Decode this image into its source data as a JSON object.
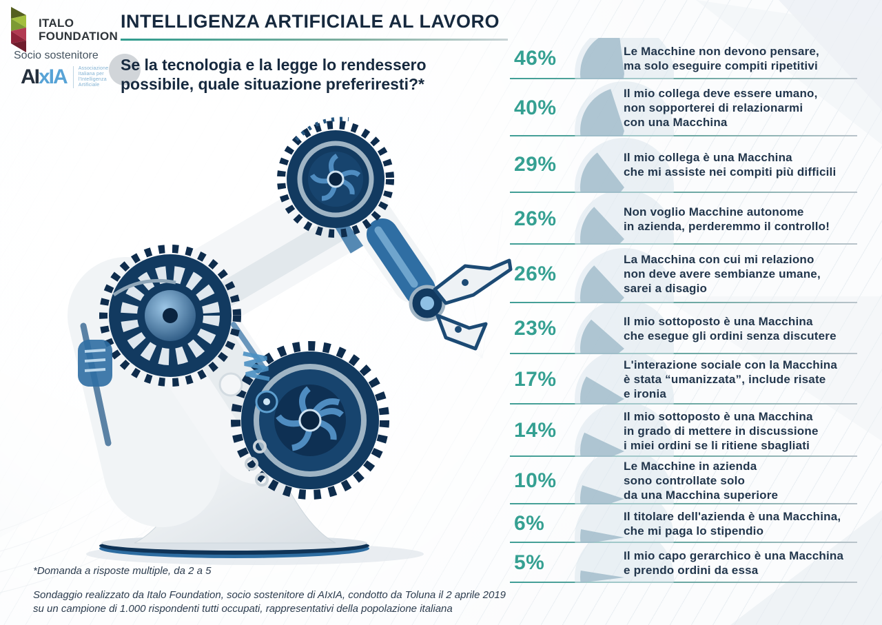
{
  "colors": {
    "accent_teal": "#35a092",
    "navy_text": "#16293e",
    "wedge_blue": "#9fbac9",
    "separator_teal": "#3f9e95",
    "robot_navy": "#123a60",
    "robot_blue": "#2f6ea3"
  },
  "branding": {
    "org_name_line1": "ITALO",
    "org_name_line2": "FOUNDATION",
    "supporter_label": "Socio sostenitore",
    "aixia_wordmark": {
      "part1": "AI",
      "part2": "xIA"
    },
    "aixia_caption_lines": [
      "Associazione",
      "Italiana per",
      "l'Intelligenza",
      "Artificiale"
    ]
  },
  "header": {
    "title": "INTELLIGENZA ARTIFICIALE AL LAVORO",
    "question_lines": [
      "Se la tecnologia e la legge lo rendessero",
      "possibile, quale situazione preferiresti?*"
    ]
  },
  "results": {
    "items": [
      {
        "pct": 46,
        "pct_label": "46%",
        "lines": [
          "Le Macchine non devono pensare,",
          "ma solo eseguire compiti ripetitivi"
        ]
      },
      {
        "pct": 40,
        "pct_label": "40%",
        "lines": [
          "Il mio collega deve essere umano,",
          "non sopporterei di relazionarmi",
          "con una Macchina"
        ]
      },
      {
        "pct": 29,
        "pct_label": "29%",
        "lines": [
          "Il mio collega è una Macchina",
          "che mi assiste nei compiti più difficili"
        ]
      },
      {
        "pct": 26,
        "pct_label": "26%",
        "lines": [
          "Non voglio Macchine autonome",
          "in azienda, perderemmo il controllo!"
        ]
      },
      {
        "pct": 26,
        "pct_label": "26%",
        "lines": [
          "La Macchina con cui mi relaziono",
          "non deve avere sembianze umane,",
          "sarei a disagio"
        ]
      },
      {
        "pct": 23,
        "pct_label": "23%",
        "lines": [
          "Il mio sottoposto è una Macchina",
          "che esegue gli ordini senza discutere"
        ]
      },
      {
        "pct": 17,
        "pct_label": "17%",
        "lines": [
          "L'interazione sociale con la Macchina",
          "è stata “umanizzata”, include risate",
          "e ironia"
        ]
      },
      {
        "pct": 14,
        "pct_label": "14%",
        "lines": [
          "Il mio sottoposto è una Macchina",
          "in grado di mettere in discussione",
          "i miei ordini se li ritiene sbagliati"
        ]
      },
      {
        "pct": 10,
        "pct_label": "10%",
        "lines": [
          "Le Macchine in azienda",
          "sono controllate solo",
          "da una Macchina superiore"
        ]
      },
      {
        "pct": 6,
        "pct_label": "6%",
        "lines": [
          "Il titolare dell'azienda è una Macchina,",
          "che mi paga lo stipendio"
        ]
      },
      {
        "pct": 5,
        "pct_label": "5%",
        "lines": [
          "Il mio capo gerarchico è una Macchina",
          "e prendo ordini da essa"
        ]
      }
    ]
  },
  "chart_data": {
    "type": "bar",
    "title": "Se la tecnologia e la legge lo rendessero possibile, quale situazione preferiresti?*",
    "value_format": "percent",
    "categories": [
      "Le Macchine non devono pensare, ma solo eseguire compiti ripetitivi",
      "Il mio collega deve essere umano, non sopporterei di relazionarmi con una Macchina",
      "Il mio collega è una Macchina che mi assiste nei compiti più difficili",
      "Non voglio Macchine autonome in azienda, perderemmo il controllo!",
      "La Macchina con cui mi relaziono non deve avere sembianze umane, sarei a disagio",
      "Il mio sottoposto è una Macchina che esegue gli ordini senza discutere",
      "L'interazione sociale con la Macchina è stata “umanizzata”, include risate e ironia",
      "Il mio sottoposto è una Macchina in grado di mettere in discussione i miei ordini se li ritiene sbagliati",
      "Le Macchine in azienda sono controllate solo da una Macchina superiore",
      "Il titolare dell'azienda è una Macchina, che mi paga lo stipendio",
      "Il mio capo gerarchico è una Macchina e prendo ordini da essa"
    ],
    "values": [
      46,
      40,
      29,
      26,
      26,
      23,
      17,
      14,
      10,
      6,
      5
    ],
    "note": "*Domanda a risposte multiple, da 2 a 5"
  },
  "footer": {
    "note": "*Domanda a risposte multiple, da 2 a 5",
    "source_lines": [
      "Sondaggio realizzato da Italo Foundation, socio sostenitore di AIxIA, condotto da Toluna il 2 aprile 2019",
      "su un campione di 1.000 rispondenti tutti occupati, rappresentativi della popolazione italiana"
    ]
  }
}
